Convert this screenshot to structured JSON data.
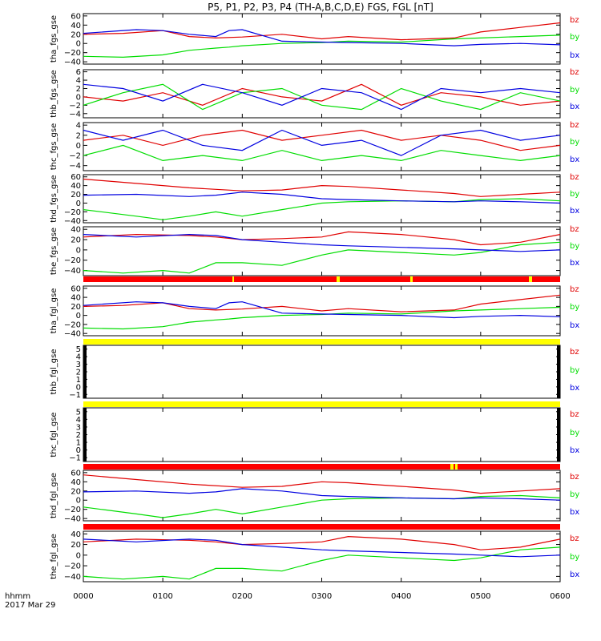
{
  "title": "P5, P1, P2, P3, P4 (TH-A,B,C,D,E) FGS, FGL [nT]",
  "footer": {
    "line1": "hhmm",
    "line2": "2017 Mar 29"
  },
  "colors": {
    "bz": "#e00000",
    "by": "#00dd00",
    "bx": "#0000e0",
    "flag_red": "#ff0000",
    "flag_yellow": "#ffff00",
    "axis": "#000000"
  },
  "chart_data": [
    {
      "type": "line",
      "ylabel": "tha_fgs_gse",
      "ylim": [
        -45,
        65
      ],
      "yticks": [
        "60",
        "40",
        "20",
        "0",
        "−20",
        "−40"
      ],
      "ytick_values": [
        60,
        40,
        20,
        0,
        -20,
        -40
      ],
      "xlim": [
        0,
        360
      ],
      "xticks": [
        "0000",
        "0100",
        "0200",
        "0300",
        "0400",
        "0500",
        "0600"
      ],
      "series": [
        {
          "name": "bz",
          "x": [
            0,
            30,
            60,
            80,
            100,
            120,
            150,
            180,
            200,
            240,
            280,
            300,
            330,
            360
          ],
          "values": [
            20,
            22,
            28,
            15,
            12,
            14,
            20,
            10,
            15,
            8,
            12,
            25,
            35,
            45
          ]
        },
        {
          "name": "by",
          "x": [
            0,
            30,
            60,
            80,
            100,
            110,
            120,
            150,
            180,
            200,
            240,
            280,
            300,
            330,
            360
          ],
          "values": [
            -28,
            -30,
            -25,
            -15,
            -10,
            -8,
            -5,
            0,
            2,
            5,
            3,
            10,
            12,
            15,
            18
          ]
        },
        {
          "name": "bx",
          "x": [
            0,
            40,
            60,
            80,
            100,
            110,
            120,
            150,
            180,
            200,
            240,
            280,
            300,
            330,
            360
          ],
          "values": [
            22,
            30,
            28,
            20,
            15,
            28,
            30,
            5,
            3,
            2,
            0,
            -5,
            -2,
            0,
            -3
          ]
        }
      ]
    },
    {
      "type": "line",
      "ylabel": "thb_fgs_gse",
      "ylim": [
        -5,
        6.5
      ],
      "yticks": [
        "6",
        "4",
        "2",
        "0",
        "−2",
        "−4"
      ],
      "ytick_values": [
        6,
        4,
        2,
        0,
        -2,
        -4
      ],
      "xlim": [
        0,
        360
      ],
      "xticks": [
        "0000",
        "0100",
        "0200",
        "0300",
        "0400",
        "0500",
        "0600"
      ],
      "series": [
        {
          "name": "bz",
          "x": [
            0,
            30,
            60,
            90,
            120,
            150,
            180,
            210,
            240,
            270,
            300,
            330,
            360
          ],
          "values": [
            0,
            -1,
            1,
            -2,
            2,
            0,
            -1,
            3,
            -2,
            1,
            0,
            -2,
            -1
          ]
        },
        {
          "name": "by",
          "x": [
            0,
            30,
            60,
            90,
            120,
            150,
            180,
            210,
            240,
            270,
            300,
            330,
            360
          ],
          "values": [
            -2,
            1,
            3,
            -3,
            1,
            2,
            -2,
            -3,
            2,
            -1,
            -3,
            1,
            -1
          ]
        },
        {
          "name": "bx",
          "x": [
            0,
            30,
            60,
            90,
            120,
            150,
            180,
            210,
            240,
            270,
            300,
            330,
            360
          ],
          "values": [
            3,
            2,
            -1,
            3,
            1,
            -2,
            2,
            1,
            -3,
            2,
            1,
            2,
            1
          ]
        }
      ]
    },
    {
      "type": "line",
      "ylabel": "thc_fgs_gse",
      "ylim": [
        -5,
        4.5
      ],
      "yticks": [
        "4",
        "2",
        "0",
        "−2",
        "−4"
      ],
      "ytick_values": [
        4,
        2,
        0,
        -2,
        -4
      ],
      "xlim": [
        0,
        360
      ],
      "xticks": [
        "0000",
        "0100",
        "0200",
        "0300",
        "0400",
        "0500",
        "0600"
      ],
      "series": [
        {
          "name": "bz",
          "x": [
            0,
            30,
            60,
            90,
            120,
            150,
            180,
            210,
            240,
            270,
            300,
            330,
            360
          ],
          "values": [
            1,
            2,
            0,
            2,
            3,
            1,
            2,
            3,
            1,
            2,
            1,
            -1,
            0
          ]
        },
        {
          "name": "by",
          "x": [
            0,
            30,
            60,
            90,
            120,
            150,
            180,
            210,
            240,
            270,
            300,
            330,
            360
          ],
          "values": [
            -2,
            0,
            -3,
            -2,
            -3,
            -1,
            -3,
            -2,
            -3,
            -1,
            -2,
            -3,
            -2
          ]
        },
        {
          "name": "bx",
          "x": [
            0,
            30,
            60,
            90,
            120,
            150,
            180,
            210,
            240,
            270,
            300,
            330,
            360
          ],
          "values": [
            3,
            1,
            3,
            0,
            -1,
            3,
            0,
            1,
            -2,
            2,
            3,
            1,
            2
          ]
        }
      ]
    },
    {
      "type": "line",
      "ylabel": "thd_fgs_gse",
      "ylim": [
        -45,
        65
      ],
      "yticks": [
        "60",
        "40",
        "20",
        "0",
        "−20",
        "−40"
      ],
      "ytick_values": [
        60,
        40,
        20,
        0,
        -20,
        -40
      ],
      "xlim": [
        0,
        360
      ],
      "xticks": [
        "0000",
        "0100",
        "0200",
        "0300",
        "0400",
        "0500",
        "0600"
      ],
      "series": [
        {
          "name": "bz",
          "x": [
            0,
            40,
            80,
            120,
            150,
            180,
            200,
            240,
            280,
            300,
            330,
            360
          ],
          "values": [
            55,
            45,
            35,
            28,
            30,
            40,
            38,
            30,
            22,
            15,
            20,
            25
          ]
        },
        {
          "name": "by",
          "x": [
            0,
            40,
            60,
            80,
            100,
            120,
            150,
            180,
            200,
            240,
            280,
            300,
            330,
            360
          ],
          "values": [
            -15,
            -30,
            -38,
            -30,
            -20,
            -30,
            -15,
            0,
            3,
            5,
            3,
            8,
            10,
            5
          ]
        },
        {
          "name": "bx",
          "x": [
            0,
            40,
            80,
            100,
            120,
            150,
            180,
            200,
            240,
            280,
            300,
            330,
            360
          ],
          "values": [
            18,
            20,
            15,
            18,
            25,
            20,
            10,
            8,
            5,
            3,
            5,
            3,
            0
          ]
        }
      ]
    },
    {
      "type": "line",
      "ylabel": "the_fgs_gse",
      "ylim": [
        -50,
        45
      ],
      "yticks": [
        "40",
        "20",
        "0",
        "−20",
        "−40"
      ],
      "ytick_values": [
        40,
        20,
        0,
        -20,
        -40
      ],
      "xlim": [
        0,
        360
      ],
      "xticks": [
        "0000",
        "0100",
        "0200",
        "0300",
        "0400",
        "0500",
        "0600"
      ],
      "series": [
        {
          "name": "bz",
          "x": [
            0,
            40,
            80,
            100,
            120,
            150,
            180,
            200,
            240,
            280,
            300,
            330,
            360
          ],
          "values": [
            25,
            30,
            28,
            25,
            20,
            22,
            25,
            35,
            30,
            20,
            10,
            15,
            30
          ]
        },
        {
          "name": "by",
          "x": [
            0,
            30,
            60,
            80,
            100,
            120,
            150,
            180,
            200,
            240,
            280,
            300,
            330,
            360
          ],
          "values": [
            -40,
            -45,
            -40,
            -45,
            -25,
            -25,
            -30,
            -10,
            0,
            -5,
            -10,
            -5,
            10,
            15
          ]
        },
        {
          "name": "bx",
          "x": [
            0,
            40,
            80,
            100,
            120,
            150,
            180,
            200,
            240,
            280,
            300,
            330,
            360
          ],
          "values": [
            30,
            25,
            30,
            28,
            20,
            15,
            10,
            8,
            5,
            2,
            0,
            -3,
            0
          ]
        }
      ]
    },
    {
      "type": "line",
      "ylabel": "tha_fgl_gse",
      "ylim": [
        -45,
        65
      ],
      "yticks": [
        "60",
        "40",
        "20",
        "0",
        "−20",
        "−40"
      ],
      "ytick_values": [
        60,
        40,
        20,
        0,
        -20,
        -40
      ],
      "xlim": [
        0,
        360
      ],
      "xticks": [
        "0000",
        "0100",
        "0200",
        "0300",
        "0400",
        "0500",
        "0600"
      ],
      "series": [
        {
          "name": "bz",
          "x": [
            0,
            30,
            60,
            80,
            100,
            120,
            150,
            180,
            200,
            240,
            280,
            300,
            330,
            360
          ],
          "values": [
            20,
            22,
            28,
            15,
            12,
            14,
            20,
            10,
            15,
            8,
            12,
            25,
            35,
            45
          ]
        },
        {
          "name": "by",
          "x": [
            0,
            30,
            60,
            80,
            100,
            110,
            120,
            150,
            180,
            200,
            240,
            280,
            300,
            330,
            360
          ],
          "values": [
            -28,
            -30,
            -25,
            -15,
            -10,
            -8,
            -5,
            0,
            2,
            5,
            3,
            10,
            12,
            15,
            18
          ]
        },
        {
          "name": "bx",
          "x": [
            0,
            40,
            60,
            80,
            100,
            110,
            120,
            150,
            180,
            200,
            240,
            280,
            300,
            330,
            360
          ],
          "values": [
            22,
            30,
            28,
            20,
            15,
            28,
            30,
            5,
            3,
            2,
            0,
            -5,
            -2,
            0,
            -3
          ]
        }
      ]
    },
    {
      "type": "line",
      "ylabel": "thb_fgl_gse",
      "ylim": [
        -1.5,
        5.5
      ],
      "yticks": [
        "5",
        "4",
        "3",
        "2",
        "1",
        "0",
        "−1"
      ],
      "ytick_values": [
        5,
        4,
        3,
        2,
        1,
        0,
        -1
      ],
      "xlim": [
        0,
        360
      ],
      "xticks": [
        "0000",
        "0100",
        "0200",
        "0300",
        "0400",
        "0500",
        "0600"
      ],
      "series": [
        {
          "name": "bz",
          "x": [],
          "values": []
        },
        {
          "name": "by",
          "x": [],
          "values": []
        },
        {
          "name": "bx",
          "x": [],
          "values": []
        }
      ]
    },
    {
      "type": "line",
      "ylabel": "thc_fgl_gse",
      "ylim": [
        -1.5,
        5.5
      ],
      "yticks": [
        "5",
        "4",
        "3",
        "2",
        "1",
        "0",
        "−1"
      ],
      "ytick_values": [
        5,
        4,
        3,
        2,
        1,
        0,
        -1
      ],
      "xlim": [
        0,
        360
      ],
      "xticks": [
        "0000",
        "0100",
        "0200",
        "0300",
        "0400",
        "0500",
        "0600"
      ],
      "series": [
        {
          "name": "bz",
          "x": [],
          "values": []
        },
        {
          "name": "by",
          "x": [],
          "values": []
        },
        {
          "name": "bx",
          "x": [],
          "values": []
        }
      ]
    },
    {
      "type": "line",
      "ylabel": "thd_fgl_gse",
      "ylim": [
        -45,
        65
      ],
      "yticks": [
        "60",
        "40",
        "20",
        "0",
        "−20",
        "−40"
      ],
      "ytick_values": [
        60,
        40,
        20,
        0,
        -20,
        -40
      ],
      "xlim": [
        0,
        360
      ],
      "xticks": [
        "0000",
        "0100",
        "0200",
        "0300",
        "0400",
        "0500",
        "0600"
      ],
      "series": [
        {
          "name": "bz",
          "x": [
            0,
            40,
            80,
            120,
            150,
            180,
            200,
            240,
            280,
            300,
            330,
            360
          ],
          "values": [
            55,
            45,
            35,
            28,
            30,
            40,
            38,
            30,
            22,
            15,
            20,
            25
          ]
        },
        {
          "name": "by",
          "x": [
            0,
            40,
            60,
            80,
            100,
            120,
            150,
            180,
            200,
            240,
            280,
            300,
            330,
            360
          ],
          "values": [
            -15,
            -30,
            -38,
            -30,
            -20,
            -30,
            -15,
            0,
            3,
            5,
            3,
            8,
            10,
            5
          ]
        },
        {
          "name": "bx",
          "x": [
            0,
            40,
            80,
            100,
            120,
            150,
            180,
            200,
            240,
            280,
            300,
            330,
            360
          ],
          "values": [
            18,
            20,
            15,
            18,
            25,
            20,
            10,
            8,
            5,
            3,
            5,
            3,
            0
          ]
        }
      ]
    },
    {
      "type": "line",
      "ylabel": "the_fgl_gse",
      "ylim": [
        -50,
        45
      ],
      "yticks": [
        "40",
        "20",
        "0",
        "−20",
        "−40"
      ],
      "ytick_values": [
        40,
        20,
        0,
        -20,
        -40
      ],
      "xlim": [
        0,
        360
      ],
      "xticks": [
        "0000",
        "0100",
        "0200",
        "0300",
        "0400",
        "0500",
        "0600"
      ],
      "series": [
        {
          "name": "bz",
          "x": [
            0,
            40,
            80,
            100,
            120,
            150,
            180,
            200,
            240,
            280,
            300,
            330,
            360
          ],
          "values": [
            25,
            30,
            28,
            25,
            20,
            22,
            25,
            35,
            30,
            20,
            10,
            15,
            30
          ]
        },
        {
          "name": "by",
          "x": [
            0,
            30,
            60,
            80,
            100,
            120,
            150,
            180,
            200,
            240,
            280,
            300,
            330,
            360
          ],
          "values": [
            -40,
            -45,
            -40,
            -45,
            -25,
            -25,
            -30,
            -10,
            0,
            -5,
            -10,
            -5,
            10,
            15
          ]
        },
        {
          "name": "bx",
          "x": [
            0,
            40,
            80,
            100,
            120,
            150,
            180,
            200,
            240,
            280,
            300,
            330,
            360
          ],
          "values": [
            30,
            25,
            30,
            28,
            20,
            15,
            10,
            8,
            5,
            2,
            0,
            -3,
            0
          ]
        }
      ]
    }
  ]
}
